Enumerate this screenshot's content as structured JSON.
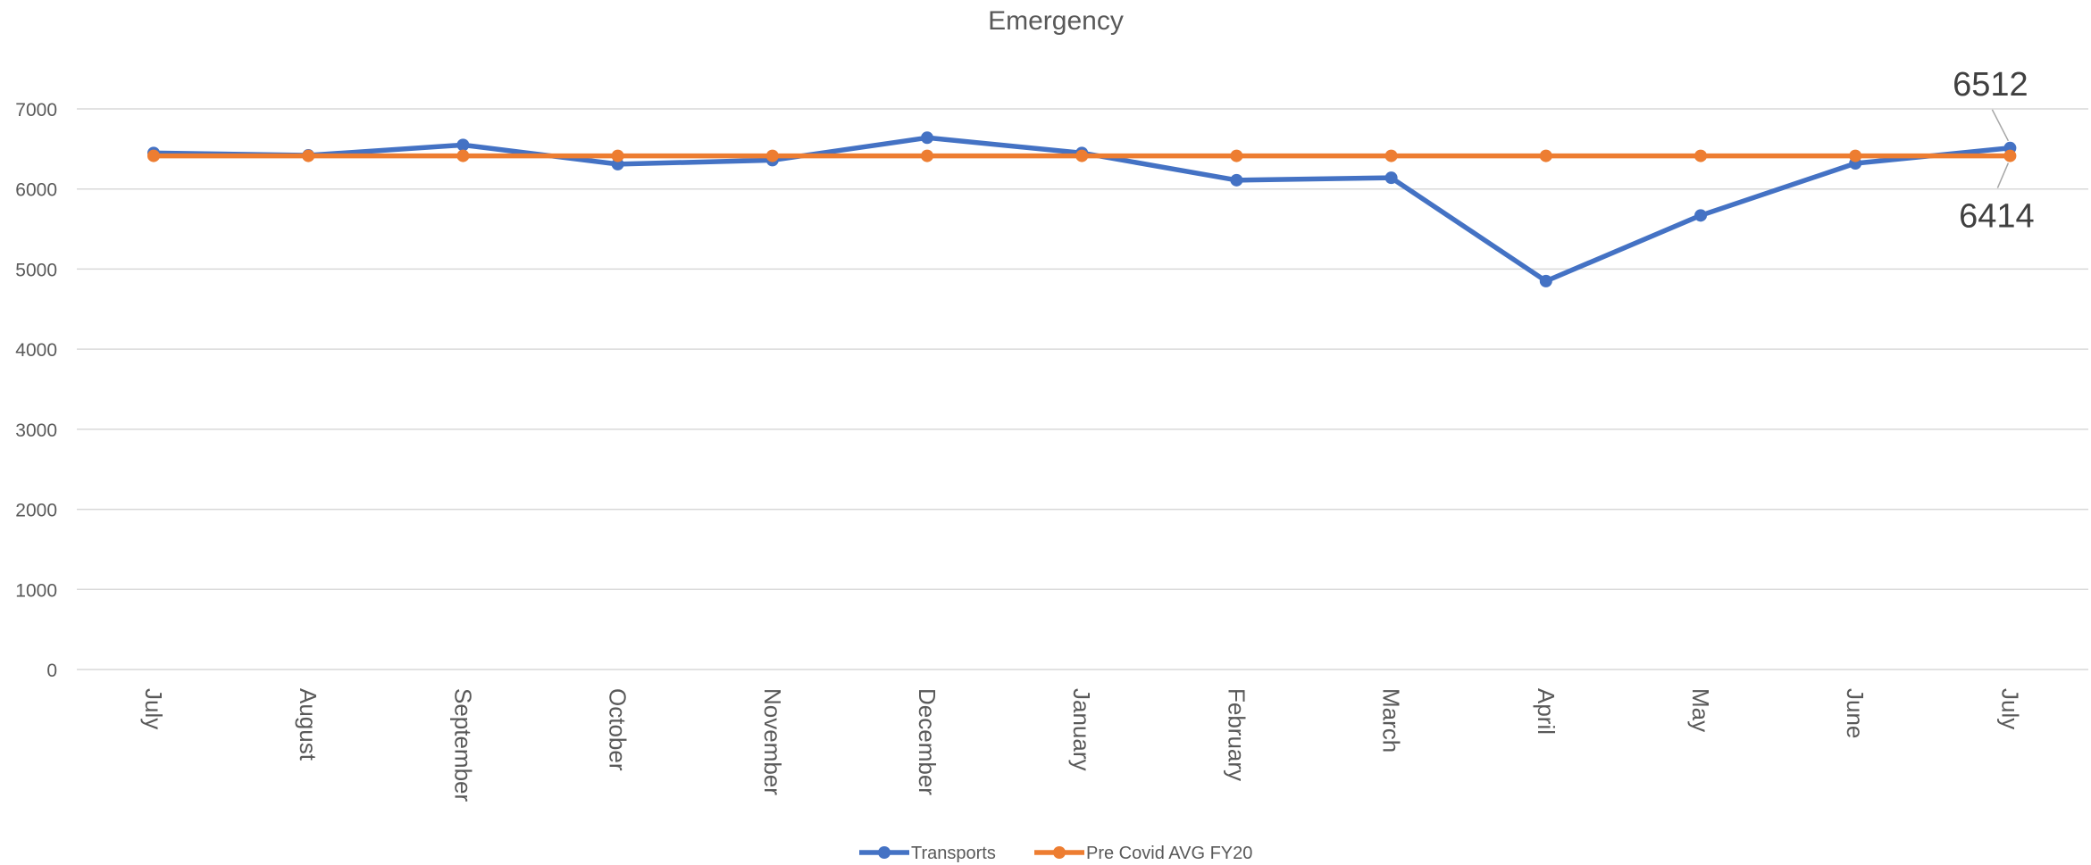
{
  "chart_data": {
    "type": "line",
    "title": "Emergency",
    "xlabel": "",
    "ylabel": "",
    "categories": [
      "July",
      "August",
      "September",
      "October",
      "November",
      "December",
      "January",
      "February",
      "March",
      "April",
      "May",
      "June",
      "July"
    ],
    "ylim": [
      0,
      7000
    ],
    "yticks": [
      0,
      1000,
      2000,
      3000,
      4000,
      5000,
      6000,
      7000
    ],
    "grid": true,
    "legend_position": "bottom",
    "series": [
      {
        "name": "Transports",
        "color": "#4472C4",
        "values": [
          6450,
          6420,
          6550,
          6310,
          6360,
          6640,
          6450,
          6110,
          6140,
          4850,
          5670,
          6320,
          6512
        ]
      },
      {
        "name": "Pre Covid AVG FY20",
        "color": "#ED7D31",
        "values": [
          6414,
          6414,
          6414,
          6414,
          6414,
          6414,
          6414,
          6414,
          6414,
          6414,
          6414,
          6414,
          6414
        ]
      }
    ],
    "annotations": [
      {
        "series": 0,
        "index": 12,
        "text": "6512",
        "placement": "above"
      },
      {
        "series": 1,
        "index": 12,
        "text": "6414",
        "placement": "below"
      }
    ]
  }
}
